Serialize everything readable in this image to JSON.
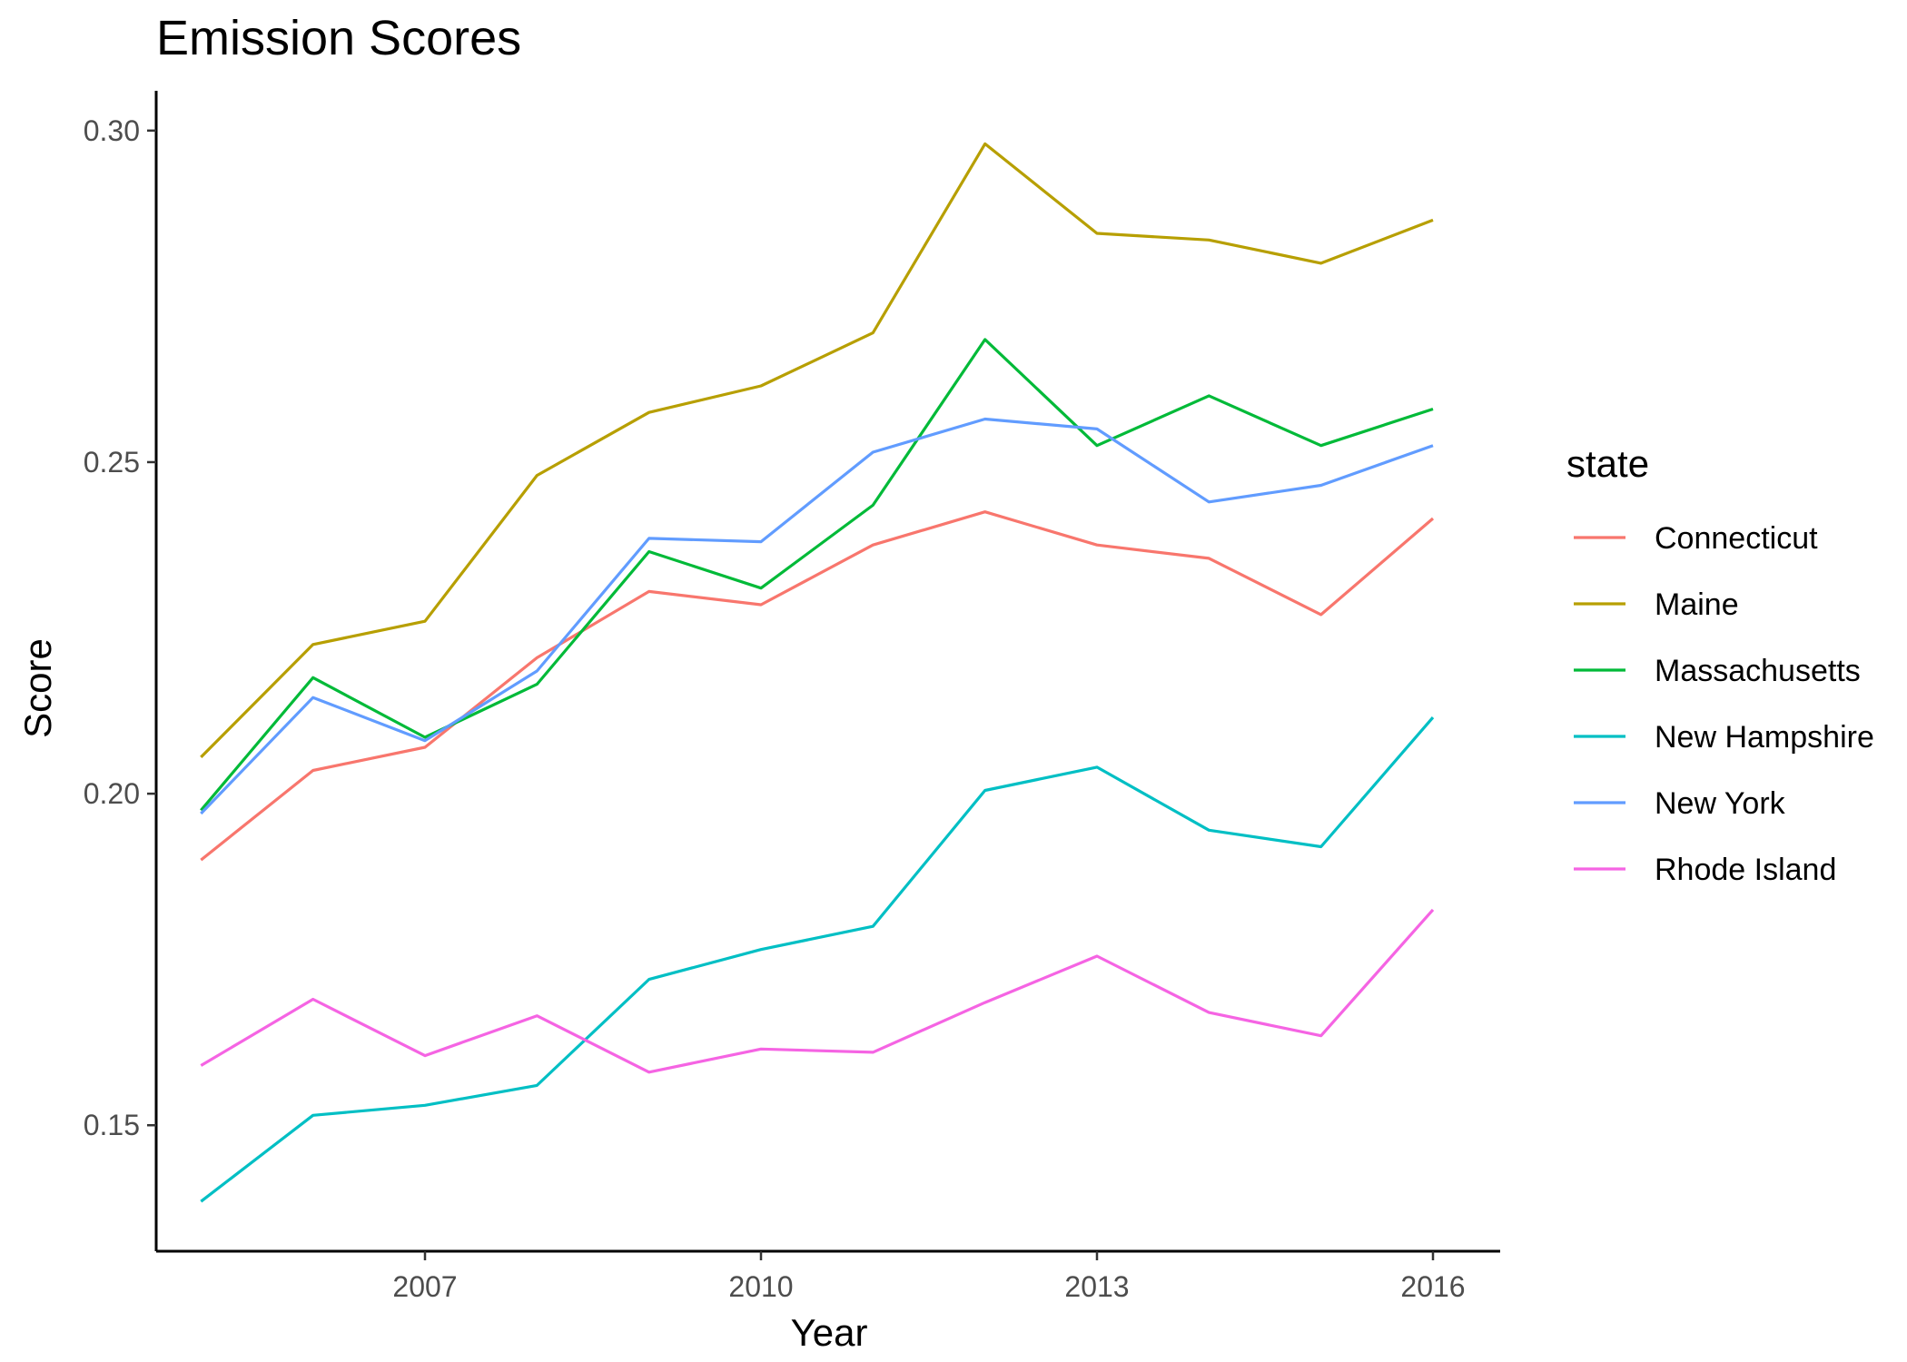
{
  "chart_data": {
    "type": "line",
    "title": "Emission Scores",
    "xlabel": "Year",
    "ylabel": "Score",
    "xlim": [
      2004.6,
      2016.6
    ],
    "ylim": [
      0.131,
      0.306
    ],
    "x_ticks": [
      2007,
      2010,
      2013,
      2016
    ],
    "x_tick_labels": [
      "2007",
      "2010",
      "2013",
      "2016"
    ],
    "y_ticks": [
      0.15,
      0.2,
      0.25,
      0.3
    ],
    "y_tick_labels": [
      "0.15",
      "0.20",
      "0.25",
      "0.30"
    ],
    "grid": false,
    "legend": {
      "title": "state",
      "position": "right"
    },
    "x": [
      2005,
      2006,
      2007,
      2008,
      2009,
      2010,
      2011,
      2012,
      2013,
      2014,
      2015,
      2016
    ],
    "series": [
      {
        "name": "Connecticut",
        "color": "#F8766D",
        "values": [
          0.19,
          0.2035,
          0.207,
          0.2205,
          0.2305,
          0.2285,
          0.2375,
          0.2425,
          0.2375,
          0.2355,
          0.227,
          0.2415
        ]
      },
      {
        "name": "Maine",
        "color": "#B79F00",
        "values": [
          0.2055,
          0.2225,
          0.226,
          0.248,
          0.2575,
          0.2615,
          0.2695,
          0.298,
          0.2845,
          0.2835,
          0.28,
          0.2865
        ]
      },
      {
        "name": "Massachusetts",
        "color": "#00BA38",
        "values": [
          0.1975,
          0.2175,
          0.2085,
          0.2165,
          0.2365,
          0.231,
          0.2435,
          0.2685,
          0.2525,
          0.26,
          0.2525,
          0.258
        ]
      },
      {
        "name": "New Hampshire",
        "color": "#00BFC4",
        "values": [
          0.1385,
          0.1515,
          0.153,
          0.156,
          0.172,
          0.1765,
          0.18,
          0.2005,
          0.204,
          0.1945,
          0.192,
          0.2115
        ]
      },
      {
        "name": "New York",
        "color": "#619CFF",
        "values": [
          0.197,
          0.2145,
          0.208,
          0.2185,
          0.2385,
          0.238,
          0.2515,
          0.2565,
          0.255,
          0.244,
          0.2465,
          0.2525
        ]
      },
      {
        "name": "Rhode Island",
        "color": "#F564E3",
        "values": [
          0.159,
          0.169,
          0.1605,
          0.1665,
          0.158,
          0.1615,
          0.161,
          0.1685,
          0.1755,
          0.167,
          0.1635,
          0.1825
        ]
      }
    ]
  }
}
